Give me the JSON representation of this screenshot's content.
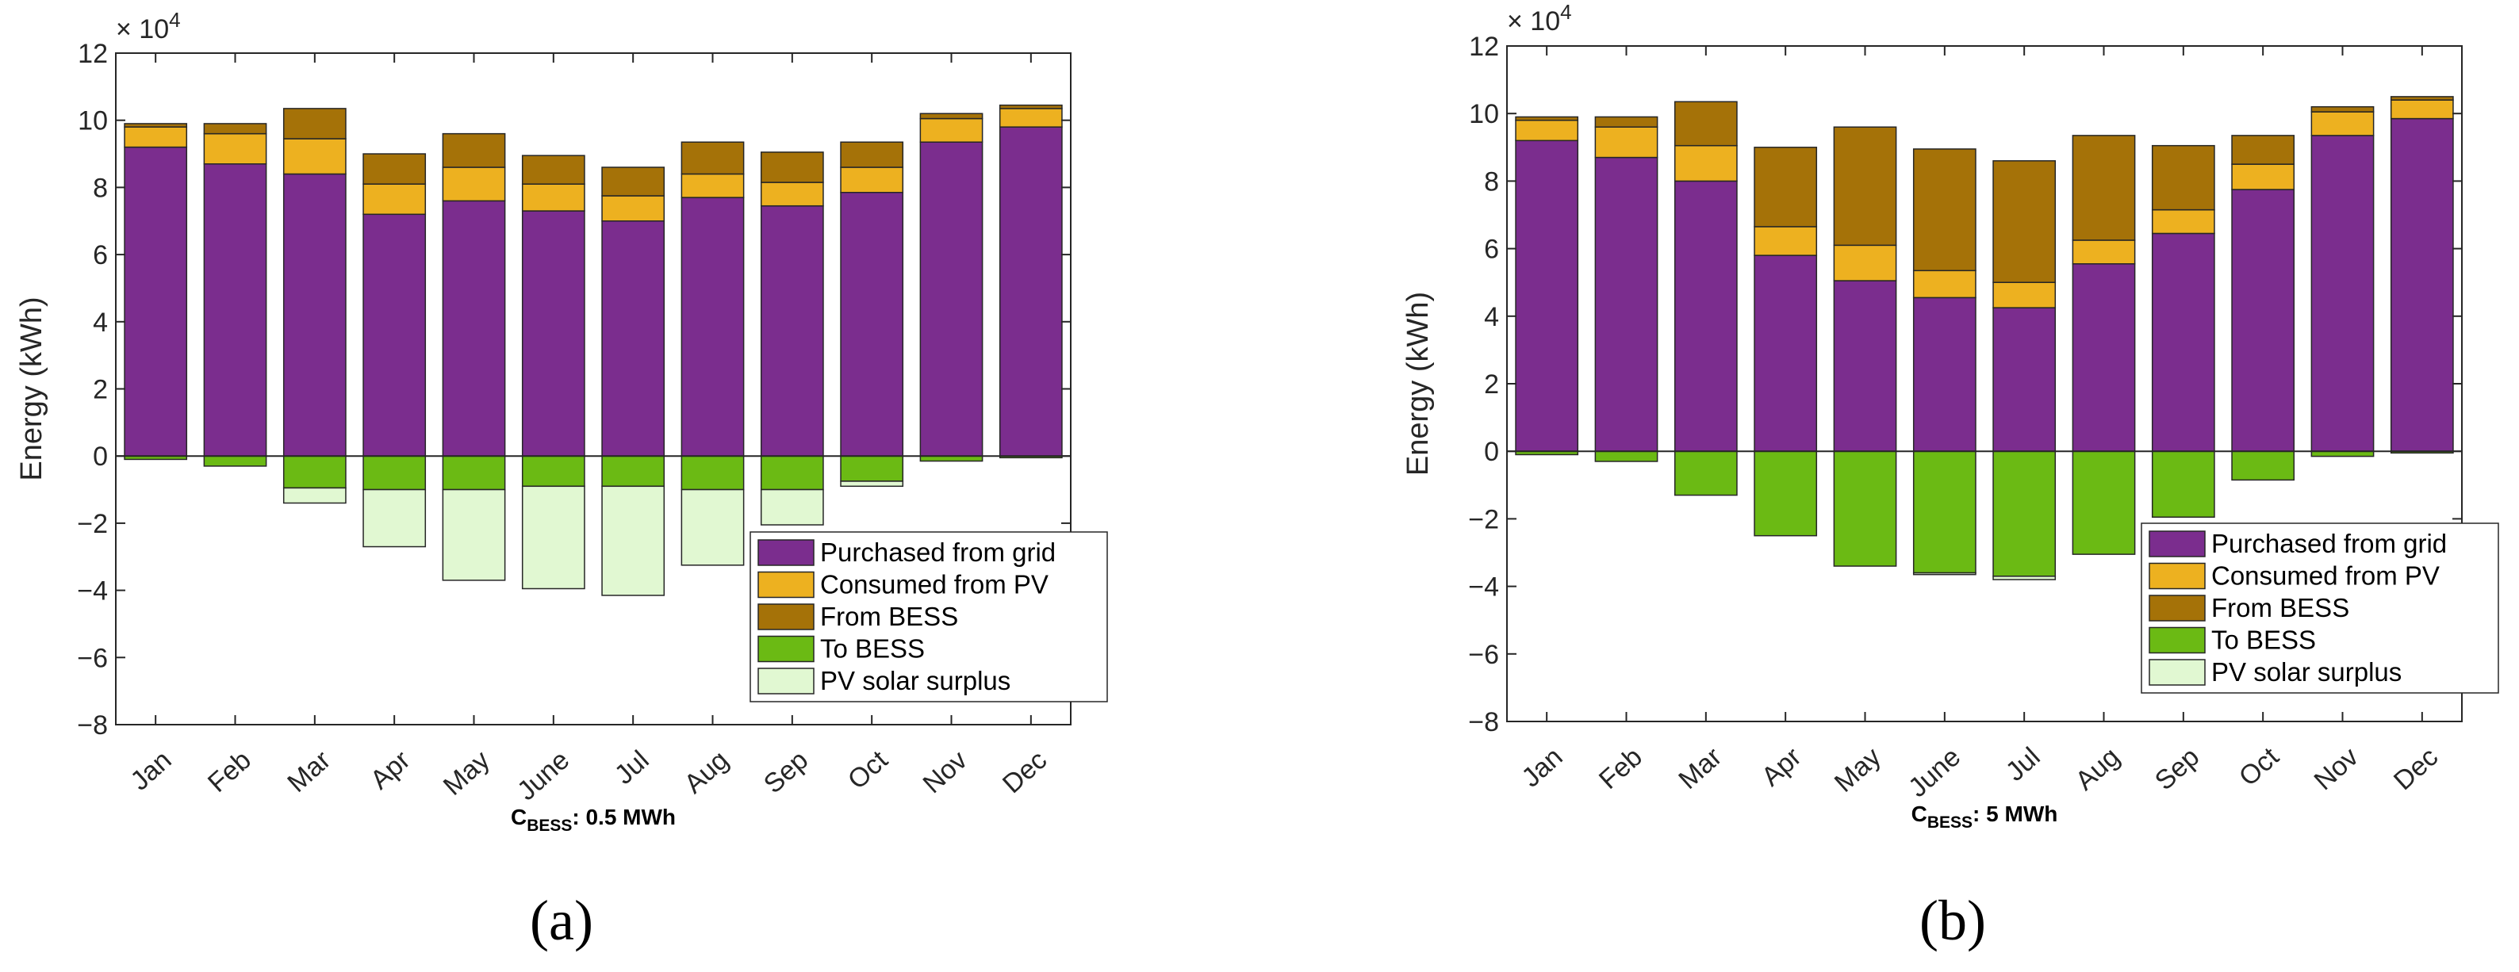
{
  "chart_data": [
    {
      "type": "bar",
      "stacked": true,
      "panel_label": "(a)",
      "caption_main": "C",
      "caption_sub": "BESS",
      "caption_tail": ": 0.5 MWh",
      "ylabel": "Energy (kWh)",
      "multiplier": "× 10",
      "multiplier_exp": "4",
      "ylim": [
        -8,
        12
      ],
      "yticks": [
        "−8",
        "−6",
        "−4",
        "−2",
        "0",
        "2",
        "4",
        "6",
        "8",
        "10",
        "12"
      ],
      "categories": [
        "Jan",
        "Feb",
        "Mar",
        "Apr",
        "May",
        "June",
        "Jul",
        "Aug",
        "Sep",
        "Oct",
        "Nov",
        "Dec"
      ],
      "legend_position": "lower-right",
      "series": [
        {
          "name": "Purchased from grid",
          "color": "#7B2D8E",
          "values": [
            9.2,
            8.7,
            8.4,
            7.2,
            7.6,
            7.3,
            7.0,
            7.7,
            7.45,
            7.85,
            9.35,
            9.8
          ]
        },
        {
          "name": "Consumed from PV",
          "color": "#EDB120",
          "values": [
            0.6,
            0.9,
            1.05,
            0.9,
            1.0,
            0.8,
            0.75,
            0.7,
            0.7,
            0.75,
            0.7,
            0.55
          ]
        },
        {
          "name": "From BESS",
          "color": "#A57208",
          "values": [
            0.1,
            0.3,
            0.9,
            0.9,
            1.0,
            0.85,
            0.85,
            0.95,
            0.9,
            0.75,
            0.15,
            0.1
          ]
        },
        {
          "name": "To BESS",
          "color": "#6BBA14",
          "values": [
            -0.1,
            -0.3,
            -0.95,
            -1.0,
            -1.0,
            -0.9,
            -0.9,
            -1.0,
            -1.0,
            -0.75,
            -0.15,
            -0.05
          ]
        },
        {
          "name": "PV solar surplus",
          "color": "#E1F8D2",
          "values": [
            0.0,
            0.0,
            -0.45,
            -1.7,
            -2.7,
            -3.05,
            -3.25,
            -2.25,
            -1.05,
            -0.15,
            0.0,
            0.0
          ]
        }
      ]
    },
    {
      "type": "bar",
      "stacked": true,
      "panel_label": "(b)",
      "caption_main": "C",
      "caption_sub": "BESS",
      "caption_tail": ": 5 MWh",
      "ylabel": "Energy (kWh)",
      "multiplier": "× 10",
      "multiplier_exp": "4",
      "ylim": [
        -8,
        12
      ],
      "yticks": [
        "−8",
        "−6",
        "−4",
        "−2",
        "0",
        "2",
        "4",
        "6",
        "8",
        "10",
        "12"
      ],
      "categories": [
        "Jan",
        "Feb",
        "Mar",
        "Apr",
        "May",
        "June",
        "Jul",
        "Aug",
        "Sep",
        "Oct",
        "Nov",
        "Dec"
      ],
      "legend_position": "lower-right",
      "series": [
        {
          "name": "Purchased from grid",
          "color": "#7B2D8E",
          "values": [
            9.2,
            8.7,
            8.0,
            5.8,
            5.05,
            4.55,
            4.25,
            5.55,
            6.45,
            7.75,
            9.35,
            9.85
          ]
        },
        {
          "name": "Consumed from PV",
          "color": "#EDB120",
          "values": [
            0.6,
            0.9,
            1.05,
            0.85,
            1.05,
            0.8,
            0.75,
            0.7,
            0.7,
            0.75,
            0.7,
            0.55
          ]
        },
        {
          "name": "From BESS",
          "color": "#A57208",
          "values": [
            0.1,
            0.3,
            1.3,
            2.35,
            3.5,
            3.6,
            3.6,
            3.1,
            1.9,
            0.85,
            0.15,
            0.1
          ]
        },
        {
          "name": "To BESS",
          "color": "#6BBA14",
          "values": [
            -0.1,
            -0.3,
            -1.3,
            -2.5,
            -3.4,
            -3.6,
            -3.7,
            -3.05,
            -1.95,
            -0.85,
            -0.15,
            -0.05
          ]
        },
        {
          "name": "PV solar surplus",
          "color": "#E1F8D2",
          "values": [
            0.0,
            0.0,
            0.0,
            0.0,
            0.0,
            -0.05,
            -0.1,
            0.0,
            0.0,
            0.0,
            0.0,
            0.0
          ]
        }
      ]
    }
  ]
}
